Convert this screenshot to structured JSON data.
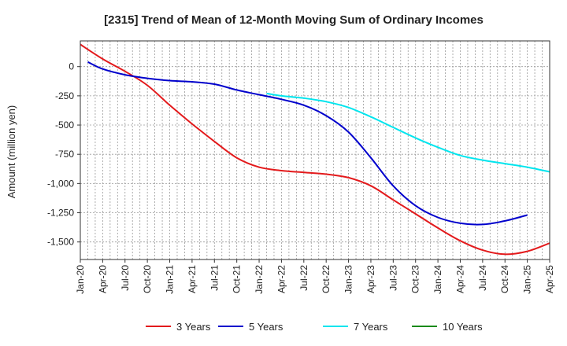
{
  "chart_data": {
    "type": "line",
    "title": "[2315]  Trend of Mean of 12-Month Moving Sum of Ordinary Incomes",
    "xlabel": "",
    "ylabel": "Amount (million yen)",
    "ylim": [
      -1650,
      220
    ],
    "yticks": [
      0,
      -250,
      -500,
      -750,
      -1000,
      -1250,
      -1500
    ],
    "ytick_labels": [
      "0",
      "-250",
      "-500",
      "-750",
      "-1,000",
      "-1,250",
      "-1,500"
    ],
    "x_start": "Jan-20",
    "x_end": "Apr-25",
    "x_tick_labels": [
      "Jan-20",
      "Apr-20",
      "Jul-20",
      "Oct-20",
      "Jan-21",
      "Apr-21",
      "Jul-21",
      "Oct-21",
      "Jan-22",
      "Apr-22",
      "Jul-22",
      "Oct-22",
      "Jan-23",
      "Apr-23",
      "Jul-23",
      "Oct-23",
      "Jan-24",
      "Apr-24",
      "Jul-24",
      "Oct-24",
      "Jan-25",
      "Apr-25"
    ],
    "grid": true,
    "legend_position": "bottom",
    "series": [
      {
        "name": "3 Years",
        "color": "#e31a1c",
        "points": [
          [
            0,
            190
          ],
          [
            3,
            65
          ],
          [
            6,
            -40
          ],
          [
            9,
            -160
          ],
          [
            12,
            -330
          ],
          [
            15,
            -490
          ],
          [
            18,
            -640
          ],
          [
            21,
            -780
          ],
          [
            24,
            -860
          ],
          [
            27,
            -890
          ],
          [
            30,
            -905
          ],
          [
            33,
            -920
          ],
          [
            36,
            -950
          ],
          [
            39,
            -1020
          ],
          [
            42,
            -1140
          ],
          [
            45,
            -1260
          ],
          [
            48,
            -1380
          ],
          [
            51,
            -1490
          ],
          [
            54,
            -1570
          ],
          [
            57,
            -1605
          ],
          [
            60,
            -1580
          ],
          [
            63,
            -1510
          ]
        ]
      },
      {
        "name": "5 Years",
        "color": "#0000cc",
        "points": [
          [
            1,
            40
          ],
          [
            3,
            -20
          ],
          [
            6,
            -70
          ],
          [
            9,
            -100
          ],
          [
            12,
            -120
          ],
          [
            15,
            -130
          ],
          [
            18,
            -150
          ],
          [
            21,
            -200
          ],
          [
            24,
            -240
          ],
          [
            27,
            -280
          ],
          [
            30,
            -330
          ],
          [
            33,
            -420
          ],
          [
            36,
            -560
          ],
          [
            39,
            -780
          ],
          [
            42,
            -1020
          ],
          [
            45,
            -1190
          ],
          [
            48,
            -1290
          ],
          [
            51,
            -1340
          ],
          [
            54,
            -1350
          ],
          [
            57,
            -1320
          ],
          [
            60,
            -1270
          ]
        ]
      },
      {
        "name": "7 Years",
        "color": "#00e5ee",
        "points": [
          [
            25,
            -230
          ],
          [
            27,
            -250
          ],
          [
            30,
            -270
          ],
          [
            33,
            -300
          ],
          [
            36,
            -350
          ],
          [
            39,
            -430
          ],
          [
            42,
            -520
          ],
          [
            45,
            -610
          ],
          [
            48,
            -690
          ],
          [
            51,
            -760
          ],
          [
            54,
            -800
          ],
          [
            57,
            -830
          ],
          [
            60,
            -860
          ],
          [
            63,
            -900
          ]
        ]
      },
      {
        "name": "10 Years",
        "color": "#1a8a1a",
        "points": []
      }
    ]
  }
}
